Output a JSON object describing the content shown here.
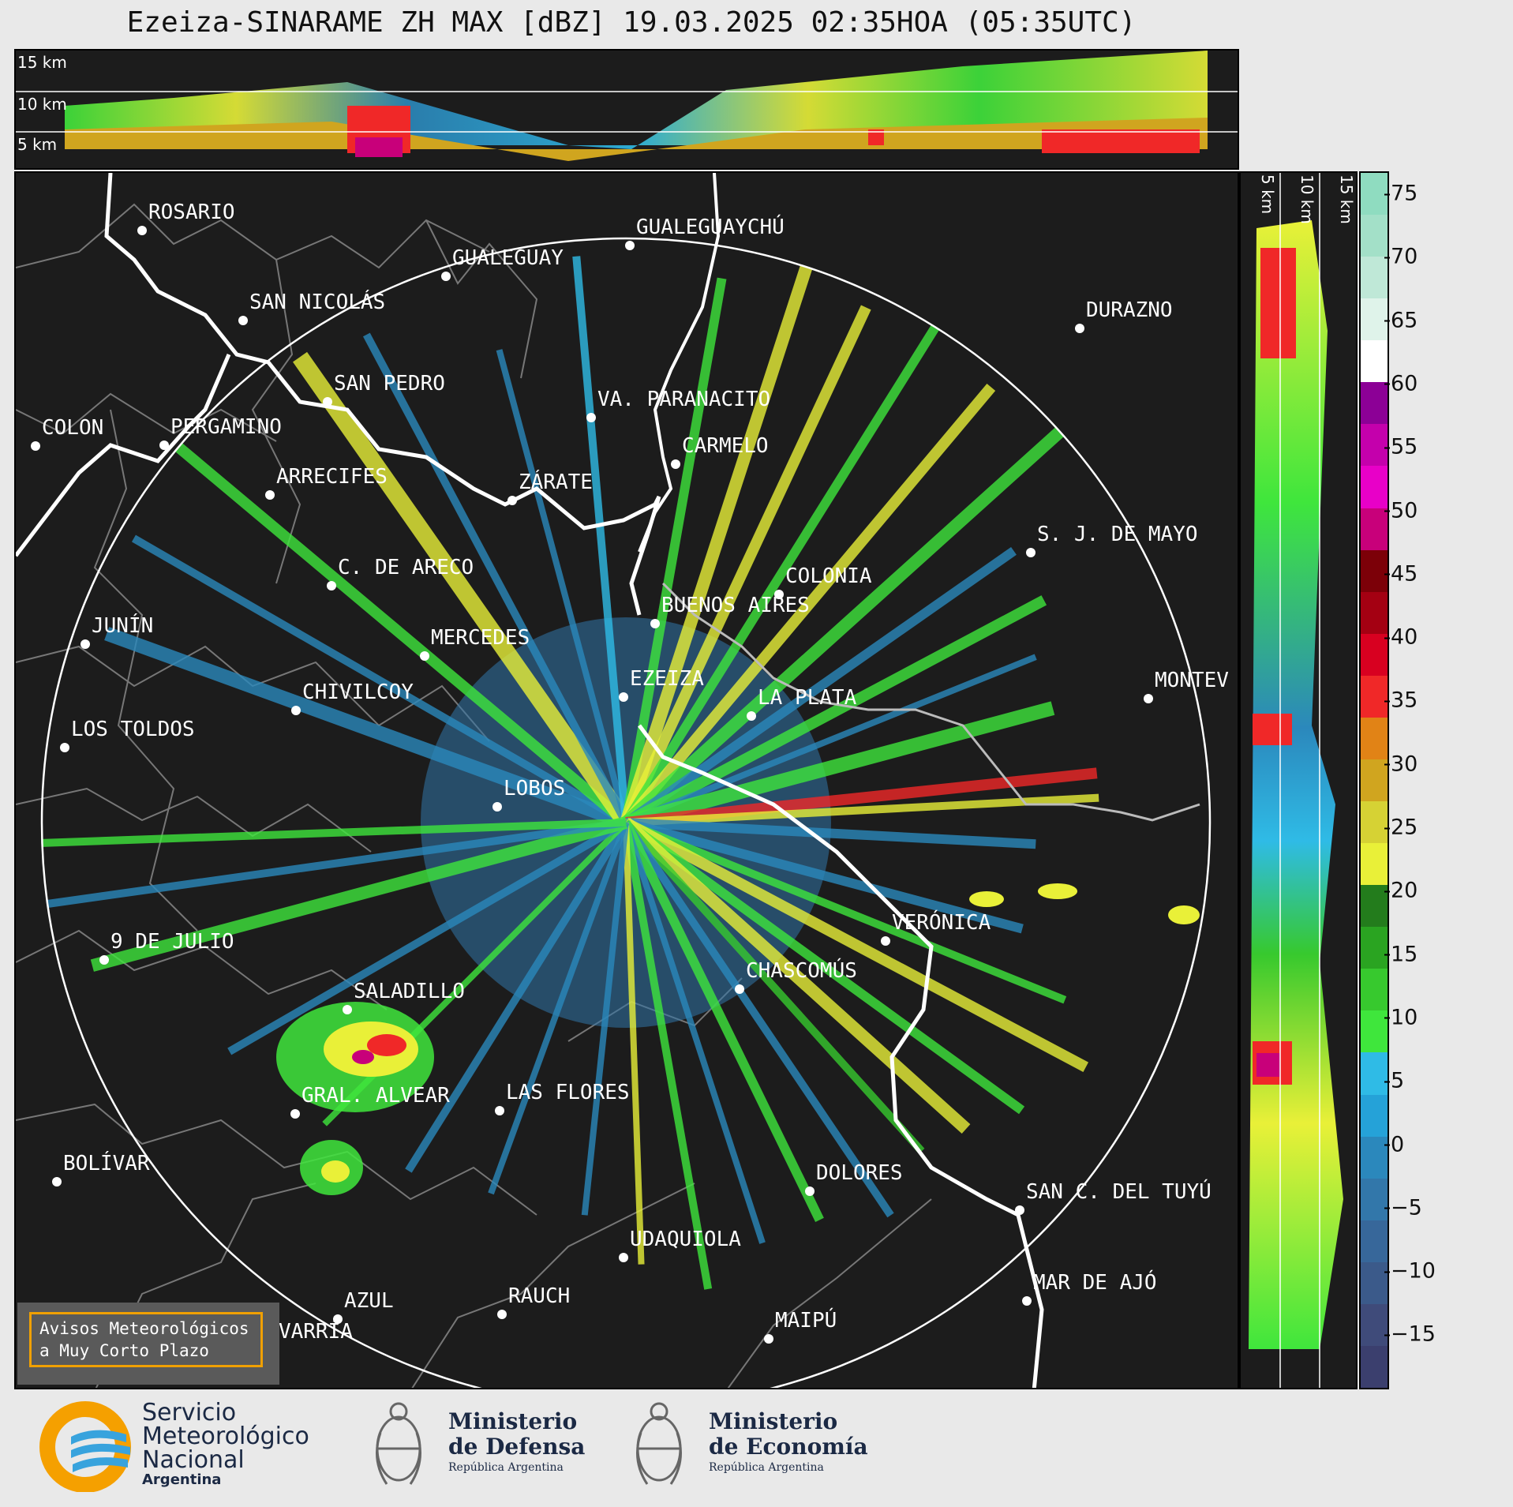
{
  "title": "Ezeiza-SINARAME ZH MAX [dBZ] 19.03.2025 02:35HOA (05:35UTC)",
  "height_labels": {
    "km15": "15 km",
    "km10": "10 km",
    "km5": "5 km"
  },
  "colorbar": {
    "ticks": [
      "75",
      "70",
      "65",
      "60",
      "55",
      "50",
      "45",
      "40",
      "35",
      "30",
      "25",
      "20",
      "15",
      "10",
      "5",
      "0",
      "−5",
      "−10",
      "−15"
    ],
    "colors": [
      "#3b3f6e",
      "#3f4b7a",
      "#3b5a8a",
      "#37679a",
      "#3277aa",
      "#2b88bc",
      "#25a2d8",
      "#2fbbe6",
      "#3fe63c",
      "#37c92e",
      "#2aa421",
      "#237c1c",
      "#e9f038",
      "#d6d234",
      "#d0a51f",
      "#e18316",
      "#f02828",
      "#d80020",
      "#a40012",
      "#7c0008",
      "#c8007a",
      "#e800c8",
      "#c400ac",
      "#8c0096",
      "#ffffff",
      "#dff3ea",
      "#bfe8d7",
      "#a3e0c8",
      "#8fdcc0"
    ]
  },
  "cities": [
    {
      "name": "ROSARIO"
    },
    {
      "name": "GUALEGUAYCHÚ"
    },
    {
      "name": "GUALEGUAY"
    },
    {
      "name": "SAN NICOLÁS"
    },
    {
      "name": "DURAZNO"
    },
    {
      "name": "SAN PEDRO"
    },
    {
      "name": "VA. PARANACITO"
    },
    {
      "name": "COLON"
    },
    {
      "name": "PERGAMINO"
    },
    {
      "name": "CARMELO"
    },
    {
      "name": "ARRECIFES"
    },
    {
      "name": "ZÁRATE"
    },
    {
      "name": "S. J. DE MAYO"
    },
    {
      "name": "C. DE ARECO"
    },
    {
      "name": "COLONIA"
    },
    {
      "name": "JUNÍN"
    },
    {
      "name": "BUENOS AIRES"
    },
    {
      "name": "MERCEDES"
    },
    {
      "name": "EZEIZA"
    },
    {
      "name": "MONTEV"
    },
    {
      "name": "CHIVILCOY"
    },
    {
      "name": "LA PLATA"
    },
    {
      "name": "LOS TOLDOS"
    },
    {
      "name": "LOBOS"
    },
    {
      "name": "VERÓNICA"
    },
    {
      "name": "9 DE JULIO"
    },
    {
      "name": "CHASCOMÚS"
    },
    {
      "name": "SALADILLO"
    },
    {
      "name": "GRAL. ALVEAR"
    },
    {
      "name": "LAS FLORES"
    },
    {
      "name": "BOLÍVAR"
    },
    {
      "name": "DOLORES"
    },
    {
      "name": "SAN C. DEL TUYÚ"
    },
    {
      "name": "UDAQUIOLA"
    },
    {
      "name": "MAR DE AJÓ"
    },
    {
      "name": "AZUL"
    },
    {
      "name": "RAUCH"
    },
    {
      "name": "MAIPÚ"
    },
    {
      "name": "OLAVARRÍA"
    }
  ],
  "aviso": {
    "line1": "Avisos Meteorológicos",
    "line2": "a Muy Corto Plazo"
  },
  "logos": {
    "smn": {
      "l1": "Servicio",
      "l2": "Meteorológico",
      "l3": "Nacional",
      "l4": "Argentina"
    },
    "defensa": {
      "l1": "Ministerio",
      "l2": "de Defensa",
      "l3": "República Argentina"
    },
    "economia": {
      "l1": "Ministerio",
      "l2": "de Economía",
      "l3": "República Argentina"
    }
  }
}
